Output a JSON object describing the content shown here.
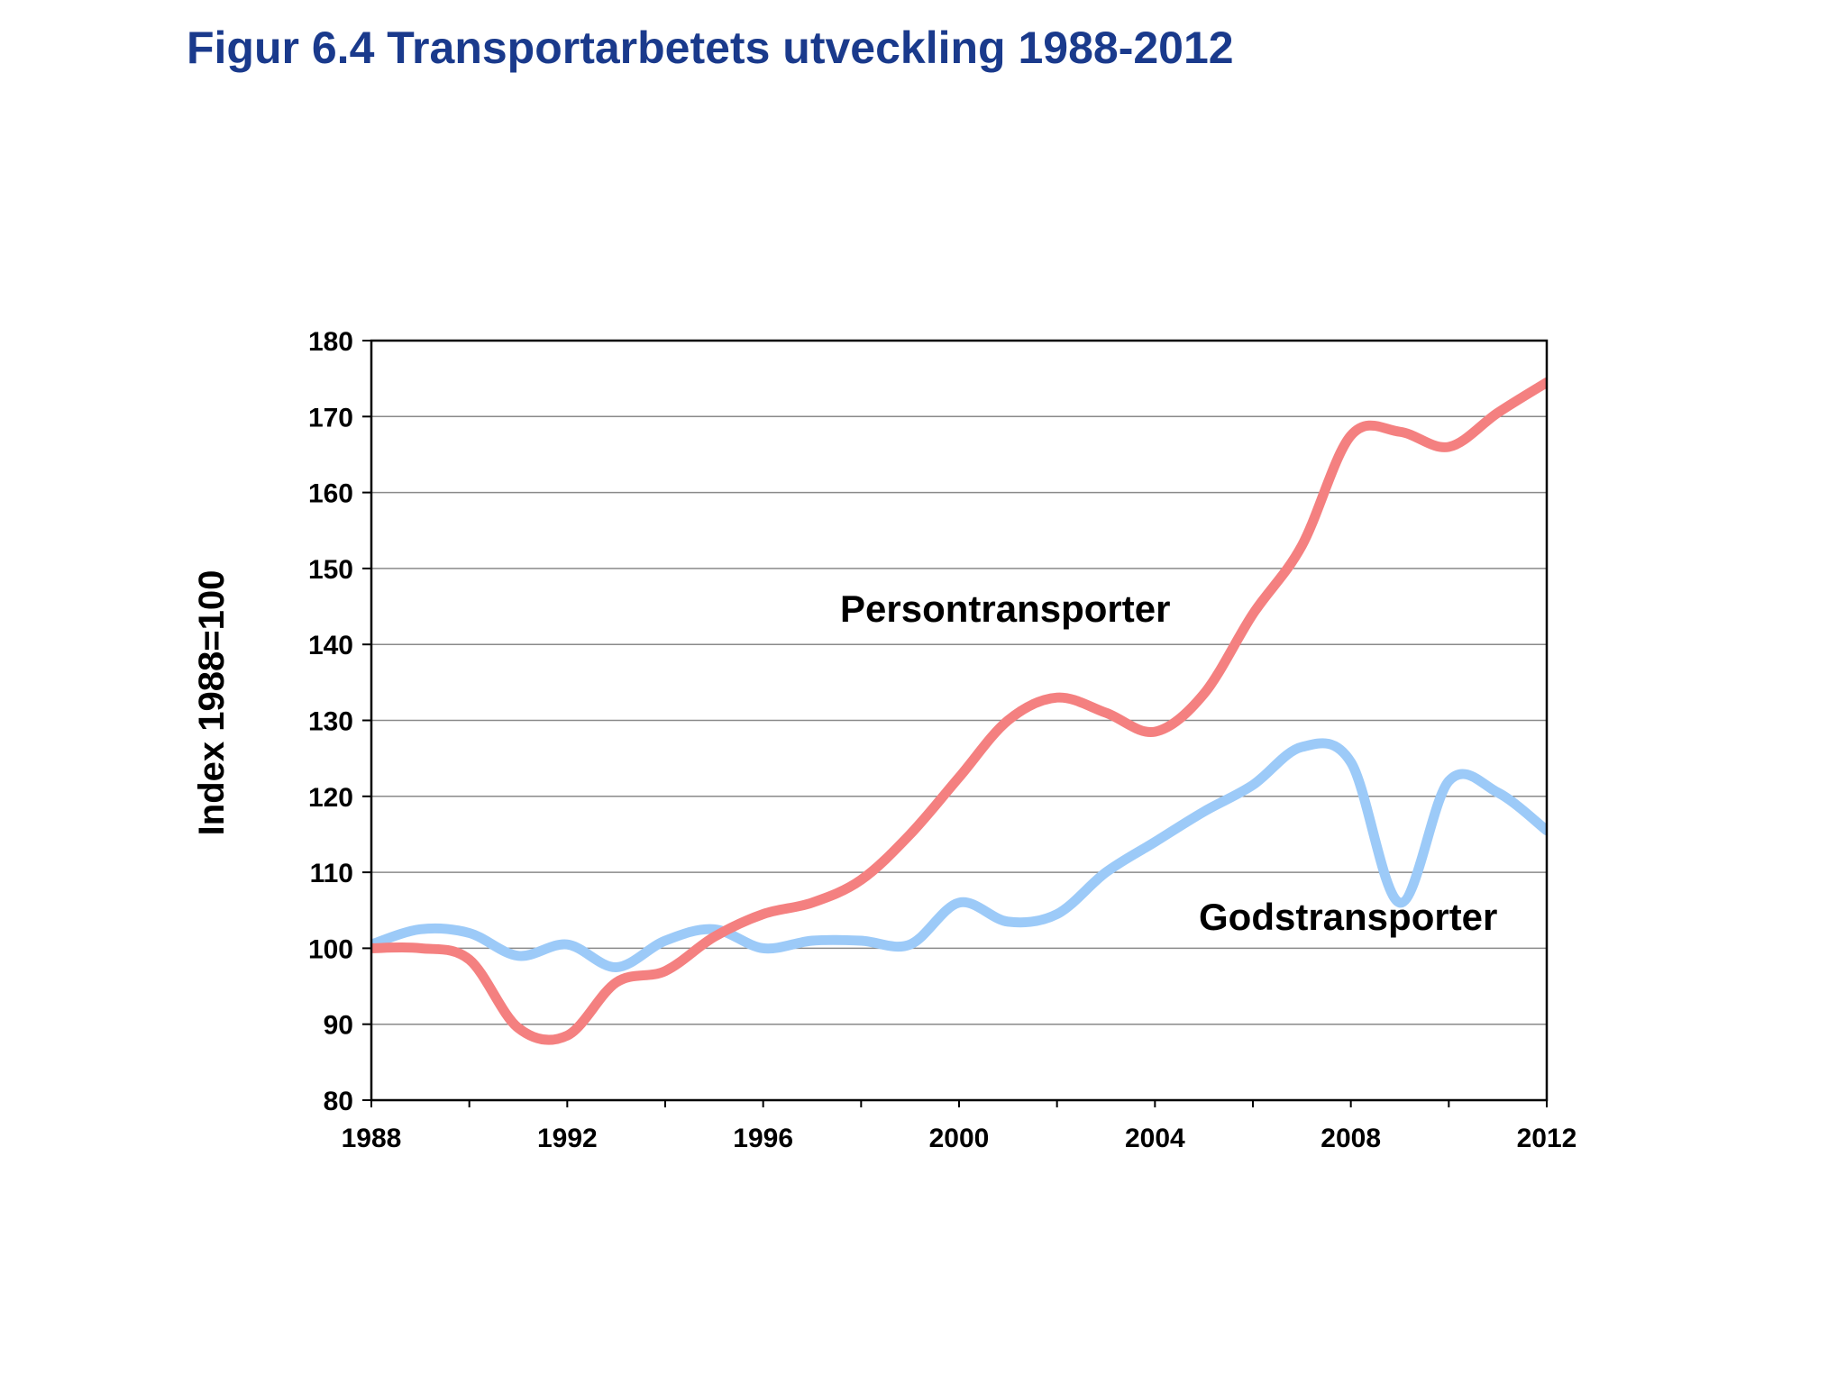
{
  "header": {
    "title": "Figur 6.4 Transportarbetets utveckling 1988-2012"
  },
  "chart_data": {
    "type": "line",
    "title": "Figur 6.4 Transportarbetets utveckling 1988-2012",
    "xlabel": "",
    "ylabel": "Index 1988=100",
    "xlim": [
      1988,
      2012
    ],
    "ylim": [
      80,
      180
    ],
    "x_ticks": [
      1988,
      1992,
      1996,
      2000,
      2004,
      2008,
      2012
    ],
    "y_ticks": [
      80,
      90,
      100,
      110,
      120,
      130,
      140,
      150,
      160,
      170,
      180
    ],
    "grid": "horizontal",
    "legend": "none (direct labels)",
    "x": [
      1988,
      1989,
      1990,
      1991,
      1992,
      1993,
      1994,
      1995,
      1996,
      1997,
      1998,
      1999,
      2000,
      2001,
      2002,
      2003,
      2004,
      2005,
      2006,
      2007,
      2008,
      2009,
      2010,
      2011,
      2012
    ],
    "series": [
      {
        "name": "Persontransporter",
        "color": "#f48080",
        "values": [
          100,
          100,
          98.5,
          89.5,
          88.5,
          95.5,
          97,
          101.5,
          104.5,
          106,
          109,
          115,
          122.5,
          130,
          133,
          131,
          128.5,
          133.5,
          144,
          153,
          167.5,
          168,
          166,
          170.5,
          174.5
        ]
      },
      {
        "name": "Godstransporter",
        "color": "#9ccaf8",
        "values": [
          100.5,
          102.5,
          102,
          99,
          100.5,
          97.5,
          101,
          102.5,
          100,
          101,
          101,
          100.5,
          106,
          103.5,
          104.5,
          110,
          114,
          118,
          121.5,
          126.5,
          124.5,
          106,
          122,
          120.5,
          115.5
        ]
      }
    ],
    "annotations": [
      {
        "text": "Persontransporter",
        "series": "Persontransporter"
      },
      {
        "text": "Godstransporter",
        "series": "Godstransporter"
      }
    ]
  }
}
